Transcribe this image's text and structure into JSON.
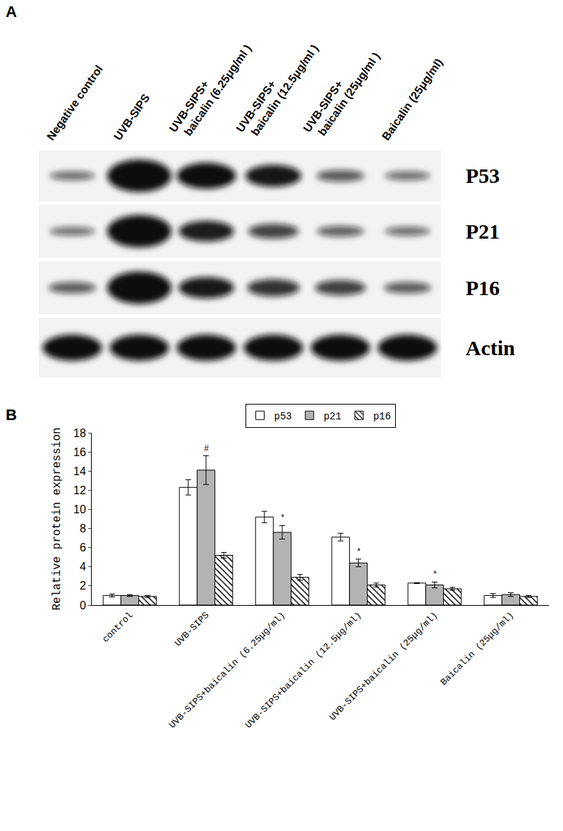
{
  "panel_labels": [
    "A",
    "B"
  ],
  "blot": {
    "lanes": [
      [
        "Negative control"
      ],
      [
        "UVB-SIPS"
      ],
      [
        "UVB-SIPS+",
        "baicalin (6.25μg/ml )"
      ],
      [
        "UVB-SIPS+",
        "baicalin (12.5μg/ml )"
      ],
      [
        "UVB-SIPS+",
        "baicalin (25μg/ml )"
      ],
      [
        "Baicalin (25μg/ml)"
      ]
    ],
    "proteins": [
      "P53",
      "P21",
      "P16",
      "Actin"
    ]
  },
  "chart_data": {
    "type": "bar",
    "y_label": "Relative protein expression",
    "categories": [
      "control",
      "UVB-SIPS",
      "UVB-SIPS+baicalin (6.25μg/ml)",
      "UVB-SIPS+baicalin (12.5μg/ml)",
      "UVB-SIPS+baicalin (25μg/ml)",
      "Baicalin (25μg/ml)"
    ],
    "series": [
      {
        "name": "p53",
        "color": "#ffffff",
        "values": [
          1.0,
          12.3,
          9.2,
          7.1,
          2.3,
          1.0
        ],
        "errors": [
          0.15,
          0.8,
          0.6,
          0.4,
          0.05,
          0.2
        ]
      },
      {
        "name": "p21",
        "color": "#b3b3b3",
        "values": [
          1.0,
          14.1,
          7.6,
          4.4,
          2.1,
          1.1
        ],
        "errors": [
          0.1,
          1.5,
          0.7,
          0.4,
          0.3,
          0.2
        ]
      },
      {
        "name": "p16",
        "color": "#ffffff",
        "marker": "hatch",
        "values": [
          0.9,
          5.2,
          2.9,
          2.1,
          1.7,
          0.9
        ],
        "errors": [
          0.1,
          0.3,
          0.3,
          0.2,
          0.15,
          0.1
        ]
      }
    ],
    "annotations": [
      {
        "text": "#",
        "category_index": 1,
        "series": "p21"
      },
      {
        "text": "*",
        "category_index": 2,
        "series": "p21"
      },
      {
        "text": "*",
        "category_index": 3,
        "series": "p21"
      },
      {
        "text": "*",
        "category_index": 4,
        "series": "p21"
      }
    ],
    "ylim": [
      0,
      18
    ],
    "yticks": [
      0,
      2,
      4,
      6,
      8,
      10,
      12,
      14,
      16,
      18
    ],
    "legend": "top",
    "grid": false
  }
}
